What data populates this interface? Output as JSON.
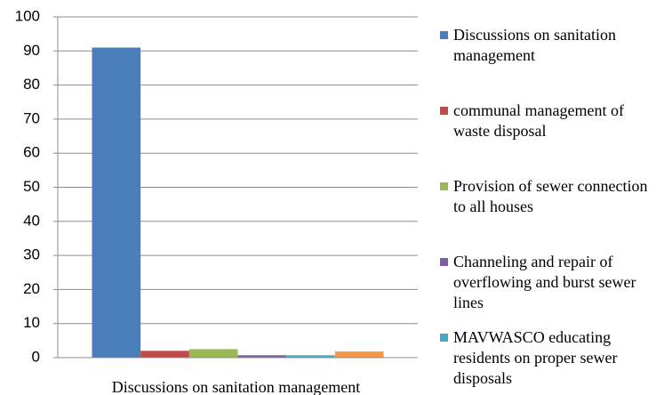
{
  "chart_data": {
    "type": "bar",
    "categories": [
      "Discussions on sanitation management"
    ],
    "series": [
      {
        "name": "Discussions on sanitation management",
        "color": "#4a7ebb",
        "values": [
          91
        ]
      },
      {
        "name": "communal management of waste disposal",
        "color": "#be4b48",
        "values": [
          2
        ]
      },
      {
        "name": "Provision of sewer connection to all houses",
        "color": "#98b954",
        "values": [
          2.5
        ]
      },
      {
        "name": "Channeling and repair of overflowing and burst sewer lines",
        "color": "#7d60a0",
        "values": [
          0.7
        ]
      },
      {
        "name": "MAVWASCO educating residents on proper sewer disposals",
        "color": "#46aac5",
        "values": [
          0.7
        ]
      },
      {
        "color": "#f79646",
        "values": [
          1.8
        ]
      }
    ],
    "ylim": [
      0,
      100
    ],
    "yticks": [
      0,
      10,
      20,
      30,
      40,
      50,
      60,
      70,
      80,
      90,
      100
    ],
    "grid": true,
    "legend": "right"
  }
}
